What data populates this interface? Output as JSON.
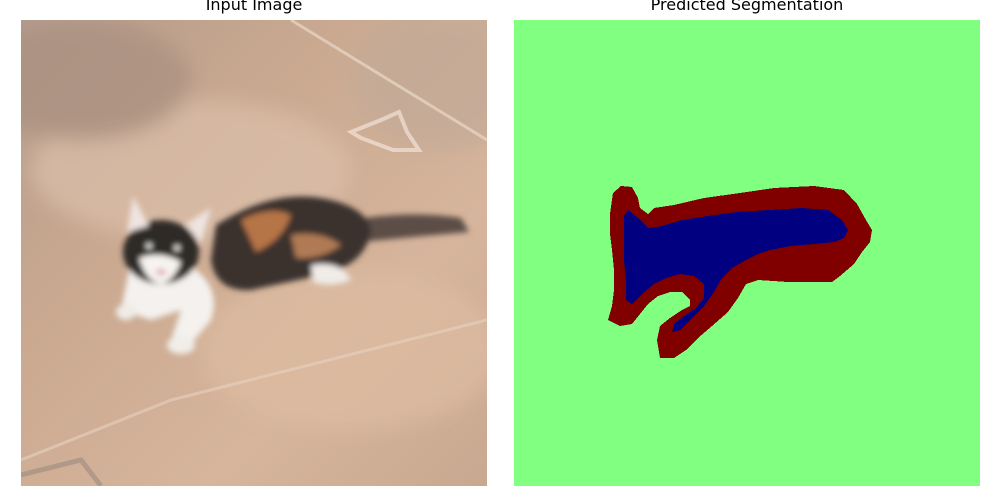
{
  "panels": [
    {
      "title": "Input Image"
    },
    {
      "title": "Predicted Segmentation"
    }
  ],
  "colors": {
    "floor_base": "#c8a78e",
    "floor_light": "#d7b8a0",
    "floor_shadow": "#a88c7a",
    "floor_tile_top": "#b39a88",
    "cat_white": "#f3f0ee",
    "cat_black": "#2f2b28",
    "cat_orange": "#b26c3c",
    "seg_background": "#80ff80",
    "seg_pet": "#000080",
    "seg_boundary": "#800000"
  }
}
